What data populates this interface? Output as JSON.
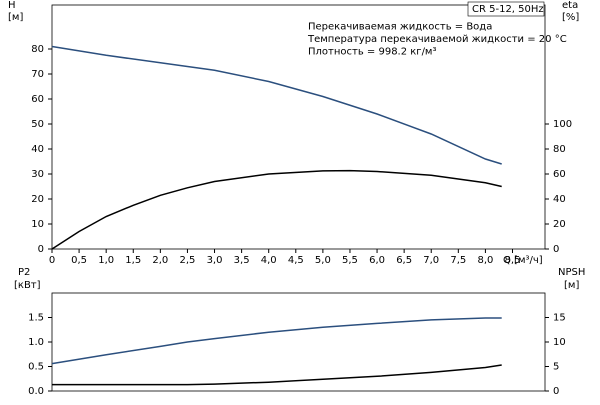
{
  "chart_data": [
    {
      "type": "line",
      "annotations": [
        "CR 5-12, 50Hz",
        "Перекачиваемая жидкость = Вода",
        "Температура перекачиваемой жидкости = 20 °C",
        "Плотность = 998.2 кг/м³"
      ],
      "ylabel": "H",
      "yunit": "[м]",
      "y2label": "eta",
      "y2unit": "[%]",
      "xlabel": "Q [м³/ч]",
      "xlim": [
        0,
        9.1
      ],
      "ylim": [
        0,
        97.6
      ],
      "y2lim": [
        0,
        195.2
      ],
      "xticks": [
        0,
        {
          "value": 0.5,
          "label": "0,5"
        },
        {
          "value": 1,
          "label": "1,0"
        },
        {
          "value": 1.5,
          "label": "1,5"
        },
        {
          "value": 2,
          "label": "2,0"
        },
        {
          "value": 2.5,
          "label": "2,5"
        },
        {
          "value": 3,
          "label": "3,0"
        },
        {
          "value": 3.5,
          "label": "3,5"
        },
        {
          "value": 4,
          "label": "4,0"
        },
        {
          "value": 4.5,
          "label": "4,5"
        },
        {
          "value": 5,
          "label": "5,0"
        },
        {
          "value": 5.5,
          "label": "5,5"
        },
        {
          "value": 6,
          "label": "6,0"
        },
        {
          "value": 6.5,
          "label": "6,5"
        },
        {
          "value": 7,
          "label": "7,0"
        },
        {
          "value": 7.5,
          "label": "7,5"
        },
        {
          "value": 8,
          "label": "8,0"
        },
        {
          "value": 8.5,
          "label": "8,5"
        }
      ],
      "yticks": [
        0,
        10,
        20,
        30,
        40,
        50,
        60,
        70,
        80
      ],
      "y2ticks": [
        0,
        20,
        40,
        60,
        80,
        100
      ],
      "series": [
        {
          "color": "#2b4f7e",
          "axis": "y",
          "x": [
            0,
            1,
            2,
            2.5,
            3,
            4,
            5,
            6,
            7,
            8,
            8.3
          ],
          "values": [
            81,
            77.5,
            74.5,
            73,
            71.5,
            67,
            61,
            54,
            46,
            36,
            34
          ]
        },
        {
          "color": "#000000",
          "axis": "y2",
          "x": [
            0,
            0.5,
            1,
            1.5,
            2,
            2.5,
            3,
            4,
            5,
            5.5,
            6,
            7,
            8,
            8.3
          ],
          "values": [
            0,
            14,
            26,
            35,
            43,
            49,
            54,
            60,
            62.5,
            62.7,
            62,
            59,
            53,
            50
          ]
        }
      ]
    },
    {
      "type": "line",
      "ylabel": "P2",
      "yunit": "[кВт]",
      "y2label": "NPSH",
      "y2unit": "[м]",
      "xlim": [
        0,
        9.1
      ],
      "ylim": [
        0,
        2.0
      ],
      "y2lim": [
        0,
        20
      ],
      "yticks": [
        {
          "value": 0,
          "label": "0.0"
        },
        0.5,
        {
          "value": 1,
          "label": "1.0"
        },
        1.5
      ],
      "y2ticks": [
        0,
        5,
        10,
        15
      ],
      "series": [
        {
          "color": "#2b4f7e",
          "axis": "y",
          "x": [
            0,
            1,
            2,
            2.5,
            3,
            4,
            5,
            6,
            7,
            8,
            8.3
          ],
          "values": [
            0.56,
            0.74,
            0.91,
            1.0,
            1.07,
            1.2,
            1.3,
            1.38,
            1.45,
            1.49,
            1.49
          ]
        },
        {
          "color": "#000000",
          "axis": "y2",
          "x": [
            0,
            1,
            2,
            2.5,
            3,
            4,
            5,
            6,
            7,
            8,
            8.3
          ],
          "values": [
            1.3,
            1.3,
            1.3,
            1.3,
            1.4,
            1.8,
            2.4,
            3.0,
            3.8,
            4.8,
            5.3
          ]
        }
      ]
    }
  ]
}
